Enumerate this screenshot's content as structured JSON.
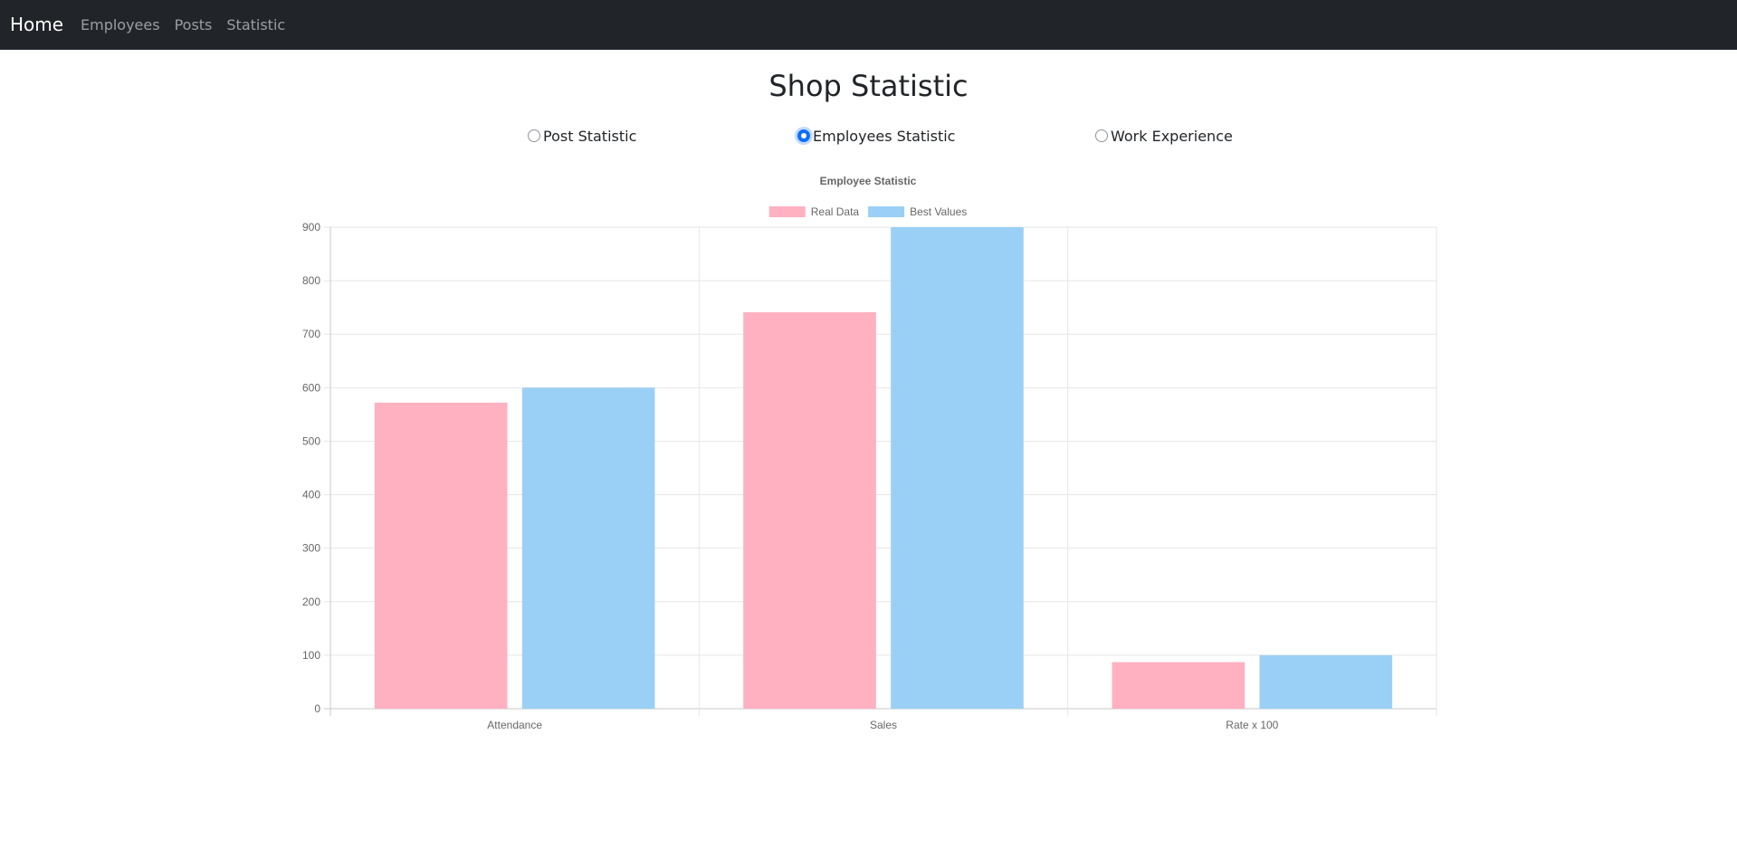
{
  "nav": {
    "brand": "Home",
    "links": [
      "Employees",
      "Posts",
      "Statistic"
    ]
  },
  "page": {
    "title": "Shop Statistic"
  },
  "options": {
    "post": "Post Statistic",
    "employees": "Employees Statistic",
    "experience": "Work Experience",
    "selected": "employees"
  },
  "colors": {
    "navbar_bg": "#212529",
    "real_fill": "#ffb0c1",
    "best_fill": "#9ad0f5",
    "accent": "#0d6efd"
  },
  "chart_data": {
    "type": "bar",
    "title": "Employee Statistic",
    "categories": [
      "Attendance",
      "Sales",
      "Rate x 100"
    ],
    "series": [
      {
        "name": "Real Data",
        "values": [
          572,
          741,
          87
        ]
      },
      {
        "name": "Best Values",
        "values": [
          600,
          900,
          100
        ]
      }
    ],
    "ylim": [
      0,
      900
    ],
    "yticks": [
      "0",
      "100",
      "200",
      "300",
      "400",
      "500",
      "600",
      "700",
      "800",
      "900"
    ],
    "legend": "top-center",
    "grid": true,
    "xlabel": "",
    "ylabel": ""
  }
}
